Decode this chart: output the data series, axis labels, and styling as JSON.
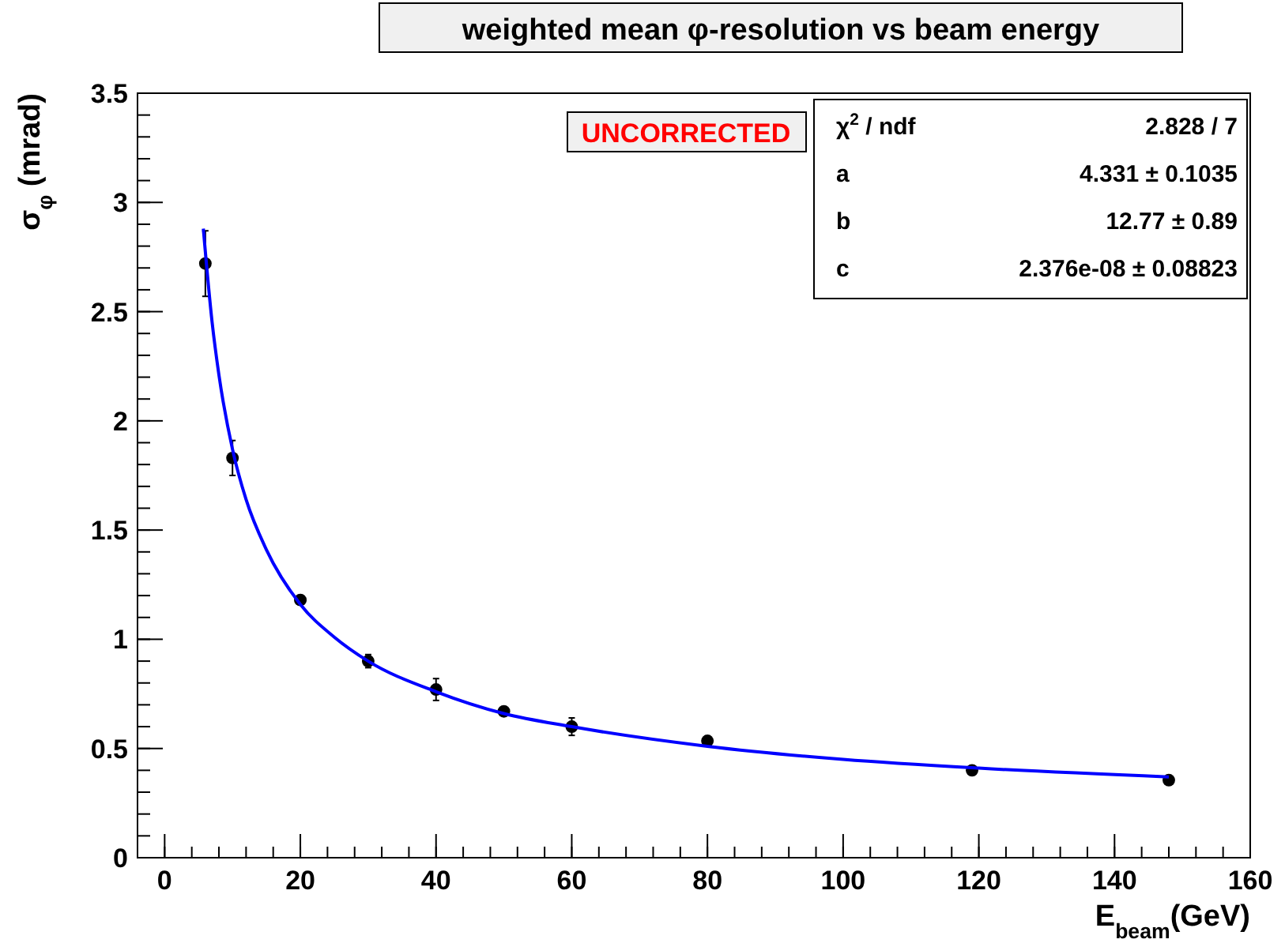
{
  "chart_data": {
    "type": "scatter",
    "title": "weighted mean φ-resolution vs beam energy",
    "xlabel": "E$_{beam}$(GeV)",
    "ylabel": "σ$_{φ}$ (mrad)",
    "xlim": [
      -4,
      160
    ],
    "xticks": [
      0,
      20,
      40,
      60,
      80,
      100,
      120,
      140,
      160
    ],
    "ylim": [
      0,
      3.5
    ],
    "yticks": [
      0,
      0.5,
      1,
      1.5,
      2,
      2.5,
      3,
      3.5
    ],
    "grid": false,
    "marker": "circle",
    "series": [
      {
        "color": "#000000",
        "x": [
          6,
          10,
          20,
          30,
          40,
          50,
          60,
          80,
          119,
          148
        ],
        "values": [
          2.72,
          1.83,
          1.18,
          0.9,
          0.77,
          0.67,
          0.6,
          0.535,
          0.4,
          0.355
        ],
        "errors": [
          0.15,
          0.08,
          0.02,
          0.03,
          0.05,
          0.02,
          0.04,
          0.02,
          0.01,
          0.02
        ]
      },
      {
        "type": "line",
        "color": "#0000ff",
        "marker": "none",
        "x": [
          5.7,
          7,
          8,
          10,
          12,
          15,
          20,
          25,
          30,
          40,
          50,
          60,
          80,
          100,
          120,
          148
        ],
        "values": [
          2.88,
          2.45,
          2.21,
          1.87,
          1.64,
          1.41,
          1.16,
          1.01,
          0.9,
          0.76,
          0.66,
          0.6,
          0.51,
          0.45,
          0.41,
          0.37
        ]
      }
    ],
    "annotations": [
      "UNCORRECTED",
      "χ$^{2}$ / ndf",
      "2.828 / 7",
      "a",
      "4.331 ± 0.1035",
      "b",
      "12.77 ±  0.89",
      "c",
      "2.376e-08 ± 0.08823"
    ]
  }
}
